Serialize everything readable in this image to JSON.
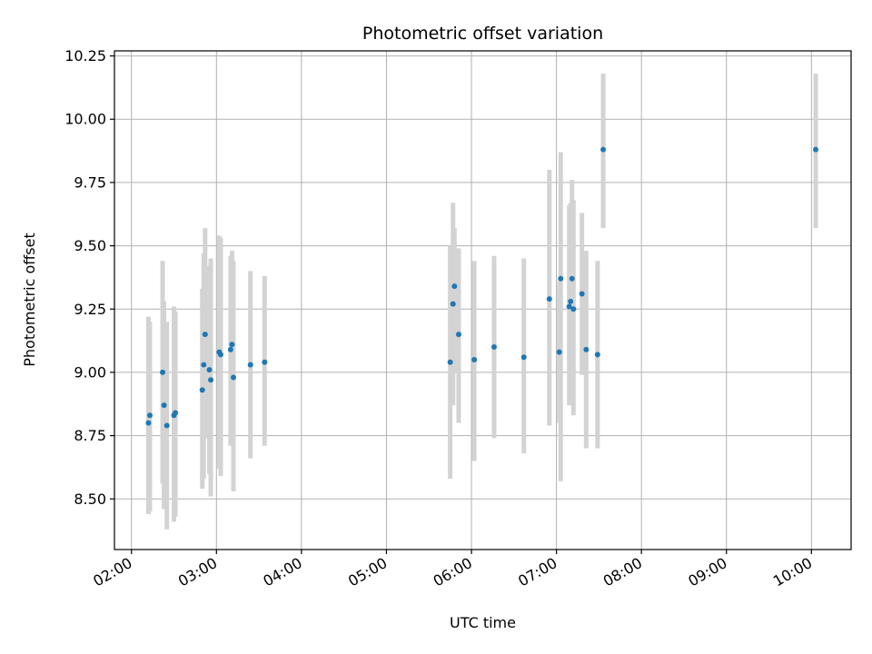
{
  "chart_data": {
    "type": "scatter",
    "title": "Photometric offset variation",
    "xlabel": "UTC time",
    "ylabel": "Photometric offset",
    "x_is_time": true,
    "xlim": [
      "01:48",
      "10:28"
    ],
    "ylim": [
      8.3,
      10.27
    ],
    "xticks": [
      "02:00",
      "03:00",
      "04:00",
      "05:00",
      "06:00",
      "07:00",
      "08:00",
      "09:00",
      "10:00"
    ],
    "yticks": [
      8.5,
      8.75,
      9.0,
      9.25,
      9.5,
      9.75,
      10.0,
      10.25
    ],
    "ytick_labels": [
      "8.50",
      "8.75",
      "9.00",
      "9.25",
      "9.50",
      "9.75",
      "10.00",
      "10.25"
    ],
    "grid": true,
    "colors": {
      "point": "#1f77b4",
      "errorbar": "#d3d3d3",
      "grid": "#b0b0b0"
    },
    "series": [
      {
        "points": [
          {
            "x": "02:12",
            "y": 8.8,
            "ylo": 8.44,
            "yhi": 9.22
          },
          {
            "x": "02:13",
            "y": 8.83,
            "ylo": 8.45,
            "yhi": 9.2
          },
          {
            "x": "02:22",
            "y": 9.0,
            "ylo": 8.56,
            "yhi": 9.44
          },
          {
            "x": "02:23",
            "y": 8.87,
            "ylo": 8.46,
            "yhi": 9.28
          },
          {
            "x": "02:25",
            "y": 8.79,
            "ylo": 8.38,
            "yhi": 9.2
          },
          {
            "x": "02:30",
            "y": 8.83,
            "ylo": 8.41,
            "yhi": 9.26
          },
          {
            "x": "02:31",
            "y": 8.84,
            "ylo": 8.43,
            "yhi": 9.24
          },
          {
            "x": "02:50",
            "y": 8.93,
            "ylo": 8.54,
            "yhi": 9.33
          },
          {
            "x": "02:51",
            "y": 9.03,
            "ylo": 8.58,
            "yhi": 9.47
          },
          {
            "x": "02:52",
            "y": 9.15,
            "ylo": 8.74,
            "yhi": 9.57
          },
          {
            "x": "02:55",
            "y": 9.01,
            "ylo": 8.6,
            "yhi": 9.42
          },
          {
            "x": "02:56",
            "y": 8.97,
            "ylo": 8.51,
            "yhi": 9.45
          },
          {
            "x": "03:02",
            "y": 9.08,
            "ylo": 8.62,
            "yhi": 9.54
          },
          {
            "x": "03:03",
            "y": 9.07,
            "ylo": 8.59,
            "yhi": 9.53
          },
          {
            "x": "03:10",
            "y": 9.09,
            "ylo": 8.71,
            "yhi": 9.46
          },
          {
            "x": "03:11",
            "y": 9.11,
            "ylo": 8.72,
            "yhi": 9.48
          },
          {
            "x": "03:12",
            "y": 8.98,
            "ylo": 8.53,
            "yhi": 9.44
          },
          {
            "x": "03:24",
            "y": 9.03,
            "ylo": 8.66,
            "yhi": 9.4
          },
          {
            "x": "03:34",
            "y": 9.04,
            "ylo": 8.71,
            "yhi": 9.38
          },
          {
            "x": "05:45",
            "y": 9.04,
            "ylo": 8.58,
            "yhi": 9.5
          },
          {
            "x": "05:47",
            "y": 9.27,
            "ylo": 8.87,
            "yhi": 9.67
          },
          {
            "x": "05:48",
            "y": 9.34,
            "ylo": 9.0,
            "yhi": 9.57
          },
          {
            "x": "05:51",
            "y": 9.15,
            "ylo": 8.8,
            "yhi": 9.49
          },
          {
            "x": "06:02",
            "y": 9.05,
            "ylo": 8.65,
            "yhi": 9.44
          },
          {
            "x": "06:16",
            "y": 9.1,
            "ylo": 8.74,
            "yhi": 9.46
          },
          {
            "x": "06:37",
            "y": 9.06,
            "ylo": 8.68,
            "yhi": 9.45
          },
          {
            "x": "06:55",
            "y": 9.29,
            "ylo": 8.79,
            "yhi": 9.8
          },
          {
            "x": "07:02",
            "y": 9.08,
            "ylo": 8.8,
            "yhi": 9.36
          },
          {
            "x": "07:03",
            "y": 9.37,
            "ylo": 8.57,
            "yhi": 9.87
          },
          {
            "x": "07:09",
            "y": 9.26,
            "ylo": 8.87,
            "yhi": 9.66
          },
          {
            "x": "07:10",
            "y": 9.28,
            "ylo": 8.9,
            "yhi": 9.67
          },
          {
            "x": "07:11",
            "y": 9.37,
            "ylo": 9.01,
            "yhi": 9.76
          },
          {
            "x": "07:12",
            "y": 9.25,
            "ylo": 8.83,
            "yhi": 9.68
          },
          {
            "x": "07:18",
            "y": 9.31,
            "ylo": 8.99,
            "yhi": 9.63
          },
          {
            "x": "07:21",
            "y": 9.09,
            "ylo": 8.7,
            "yhi": 9.48
          },
          {
            "x": "07:29",
            "y": 9.07,
            "ylo": 8.7,
            "yhi": 9.44
          },
          {
            "x": "07:33",
            "y": 9.88,
            "ylo": 9.57,
            "yhi": 10.18
          },
          {
            "x": "10:03",
            "y": 9.88,
            "ylo": 9.57,
            "yhi": 10.18
          }
        ]
      }
    ]
  }
}
